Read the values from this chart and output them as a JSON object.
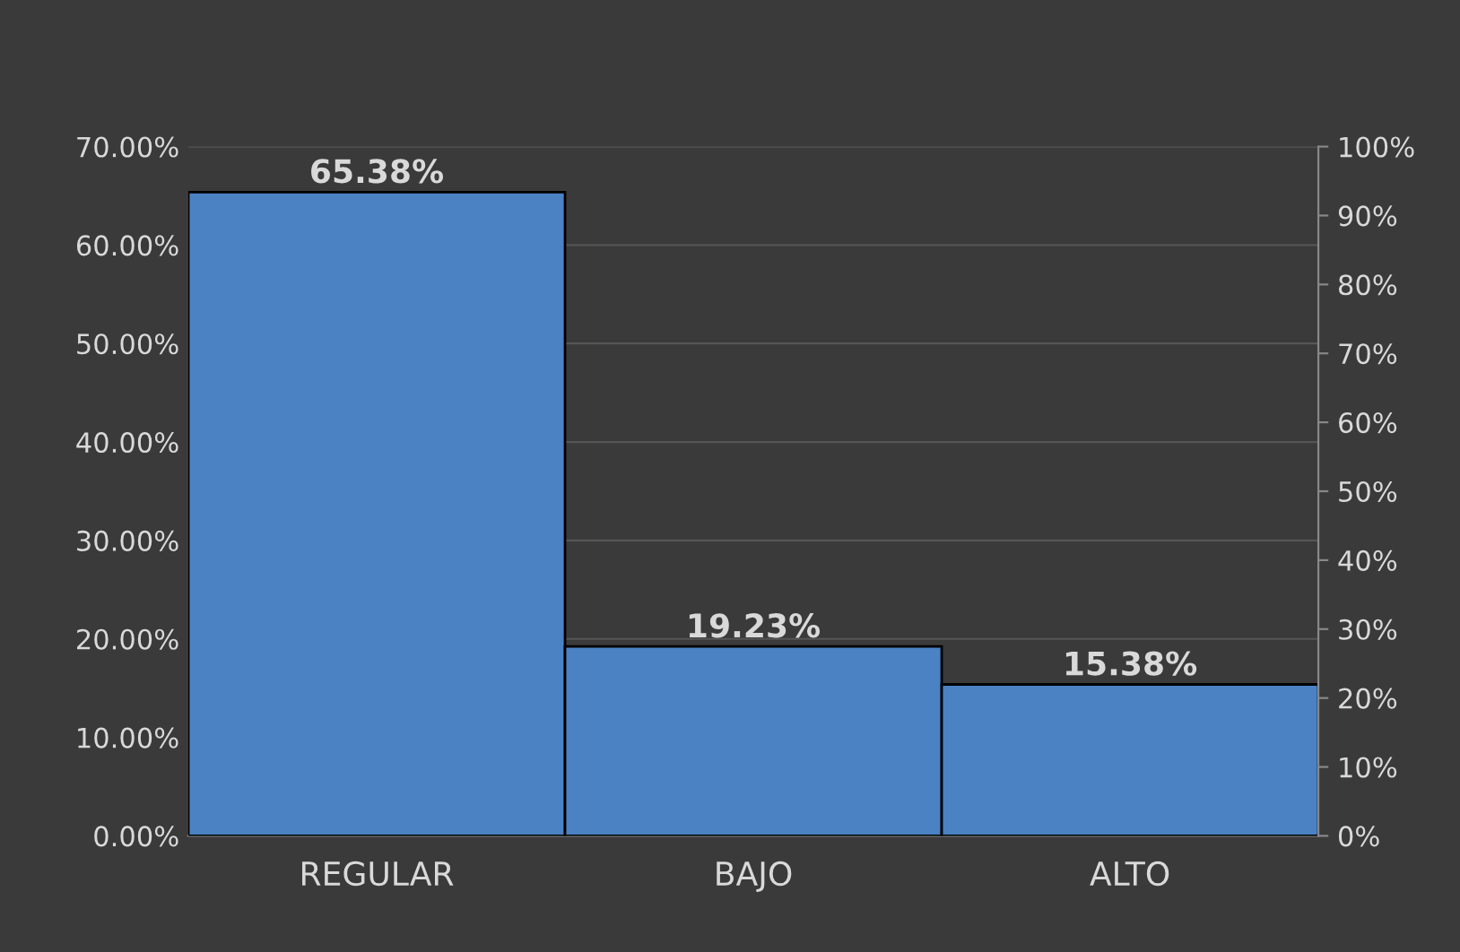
{
  "chart_data": {
    "type": "bar",
    "categories": [
      "REGULAR",
      "BAJO",
      "ALTO"
    ],
    "series": [
      {
        "color": "#4a82c3",
        "values": [
          65.38,
          19.23,
          15.38
        ]
      }
    ],
    "value_labels": [
      "65.38%",
      "19.23%",
      "15.38%"
    ],
    "ylim": [
      0,
      70
    ],
    "yticks": [
      {
        "value": 0,
        "label": "0.00%"
      },
      {
        "value": 10,
        "label": "10.00%"
      },
      {
        "value": 20,
        "label": "20.00%"
      },
      {
        "value": 30,
        "label": "30.00%"
      },
      {
        "value": 40,
        "label": "40.00%"
      },
      {
        "value": 50,
        "label": "50.00%"
      },
      {
        "value": 60,
        "label": "60.00%"
      },
      {
        "value": 70,
        "label": "70.00%"
      }
    ],
    "y2lim": [
      0,
      100
    ],
    "y2ticks": [
      {
        "value": 0,
        "label": "0%"
      },
      {
        "value": 10,
        "label": "10%"
      },
      {
        "value": 20,
        "label": "20%"
      },
      {
        "value": 30,
        "label": "30%"
      },
      {
        "value": 40,
        "label": "40%"
      },
      {
        "value": 50,
        "label": "50%"
      },
      {
        "value": 60,
        "label": "60%"
      },
      {
        "value": 70,
        "label": "70%"
      },
      {
        "value": 80,
        "label": "80%"
      },
      {
        "value": 90,
        "label": "90%"
      },
      {
        "value": 100,
        "label": "100%"
      }
    ],
    "grid": "y",
    "legend": false
  }
}
